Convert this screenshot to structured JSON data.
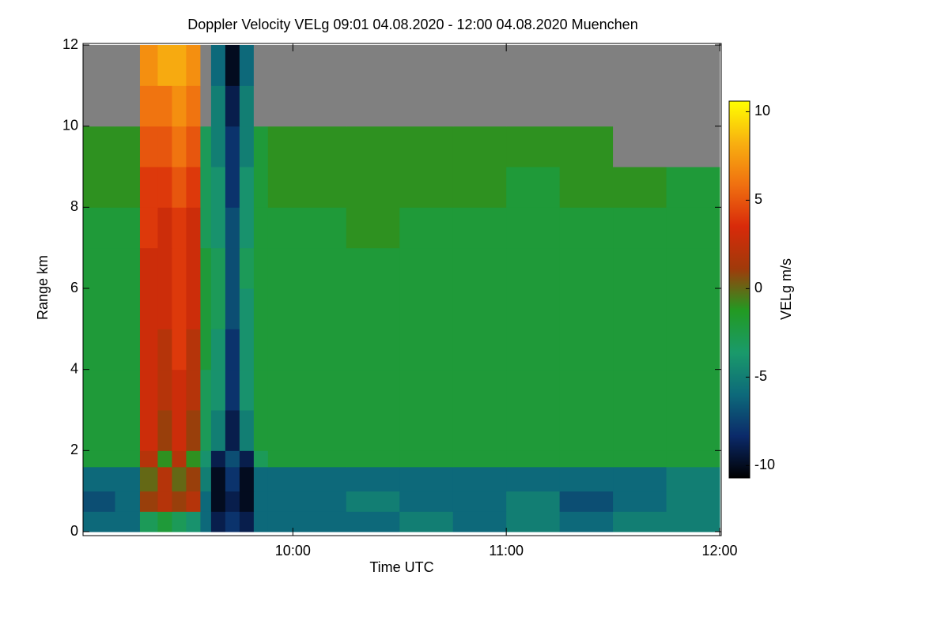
{
  "chart_data": {
    "type": "heatmap",
    "title": "Doppler Velocity VELg   09:01 04.08.2020 - 12:00 04.08.2020 Muenchen",
    "x_label": "Time UTC",
    "y_label": "Range km",
    "colorbar_label": "VELg m/s",
    "xlim": [
      "09:01",
      "12:00"
    ],
    "xticks": [
      "10:00",
      "11:00",
      "12:00"
    ],
    "ylim": [
      0,
      12
    ],
    "yticks": [
      0,
      2,
      4,
      6,
      8,
      10,
      12
    ],
    "zlim": [
      -10.7,
      10.6
    ],
    "zticks": [
      10,
      5,
      0,
      -5,
      -10
    ],
    "colorscale": [
      "#000000",
      "#0b2a6a",
      "#0d6a7a",
      "#1a9a6a",
      "#229a22",
      "#a03a0a",
      "#d82a0a",
      "#f07010",
      "#f8b010",
      "#ffff00"
    ],
    "missing_color": "#808080",
    "x_bins": [
      "09:01",
      "09:10",
      "09:17",
      "09:22",
      "09:26",
      "09:30",
      "09:34",
      "09:37",
      "09:41",
      "09:45",
      "09:49",
      "09:53",
      "10:00",
      "10:15",
      "10:30",
      "10:45",
      "11:00",
      "11:15",
      "11:30",
      "11:45",
      "12:00"
    ],
    "y_bins": [
      0,
      0.5,
      1,
      1.6,
      2,
      3,
      4,
      5,
      6,
      7,
      8,
      9,
      10,
      11,
      12
    ],
    "values": [
      [
        -6,
        -6,
        -3,
        -2,
        -3,
        -4,
        -6,
        -9,
        -8,
        -9,
        -6,
        -6,
        -6,
        -6,
        -5,
        -6,
        -5,
        -6,
        -5,
        -5
      ],
      [
        -7,
        -6,
        1,
        2,
        1,
        2,
        -6,
        -10,
        -9,
        -10,
        -6,
        -6,
        -6,
        -5,
        -6,
        -6,
        -5,
        -7,
        -6,
        -5
      ],
      [
        -6,
        -6,
        0,
        2,
        0,
        1,
        -5,
        -10,
        -8,
        -10,
        -6,
        -6,
        -6,
        -6,
        -6,
        -6,
        -6,
        -6,
        -6,
        -5
      ],
      [
        -2,
        -2,
        2,
        -1,
        2,
        -1,
        -4,
        -9,
        -7,
        -9,
        -3,
        -2,
        -2,
        -2,
        -2,
        -2,
        -2,
        -2,
        -2,
        -2
      ],
      [
        -2,
        -2,
        3,
        1,
        3,
        1,
        -3,
        -5,
        -9,
        -5,
        -2,
        -2,
        -2,
        -2,
        -2,
        -2,
        -2,
        -2,
        -2,
        -2
      ],
      [
        -2,
        -2,
        3,
        2,
        3,
        2,
        -3,
        -4,
        -8,
        -4,
        -2,
        -2,
        -2,
        -2,
        -2,
        -2,
        -2,
        -2,
        -2,
        -2
      ],
      [
        -2,
        -2,
        3,
        2,
        4,
        2,
        -2,
        -4,
        -8,
        -4,
        -2,
        -2,
        -2,
        -2,
        -2,
        -2,
        -2,
        -2,
        -2,
        -2
      ],
      [
        -2,
        -2,
        3,
        3,
        4,
        3,
        -2,
        -3,
        -7,
        -4,
        -2,
        -2,
        -2,
        -2,
        -2,
        -2,
        -2,
        -2,
        -2,
        -2
      ],
      [
        -2,
        -2,
        3,
        3,
        4,
        3,
        -2,
        -3,
        -7,
        -3,
        -2,
        -2,
        -2,
        -2,
        -2,
        -2,
        -2,
        -2,
        -2,
        -2
      ],
      [
        -2,
        -2,
        4,
        3,
        4,
        3,
        -3,
        -4,
        -7,
        -4,
        -2,
        -2,
        -2,
        -1,
        -2,
        -2,
        -2,
        -2,
        -2,
        -2
      ],
      [
        -1,
        -1,
        4,
        4,
        5,
        4,
        -3,
        -4,
        -8,
        -4,
        -2,
        -1,
        -1,
        -1,
        -1,
        -1,
        -2,
        -1,
        -1,
        -2
      ],
      [
        -1,
        -1,
        5,
        5,
        6,
        5,
        -3,
        -5,
        -8,
        -5,
        -2,
        -1,
        -1,
        -1,
        -1,
        -1,
        -1,
        -1,
        null,
        null
      ],
      [
        null,
        null,
        6,
        6,
        7,
        6,
        null,
        -5,
        -9,
        -5,
        null,
        null,
        null,
        null,
        null,
        null,
        null,
        null,
        null,
        null
      ],
      [
        null,
        null,
        7,
        8,
        8,
        7,
        null,
        -6,
        -10,
        -6,
        null,
        null,
        null,
        null,
        null,
        null,
        null,
        null,
        null,
        null
      ]
    ]
  }
}
